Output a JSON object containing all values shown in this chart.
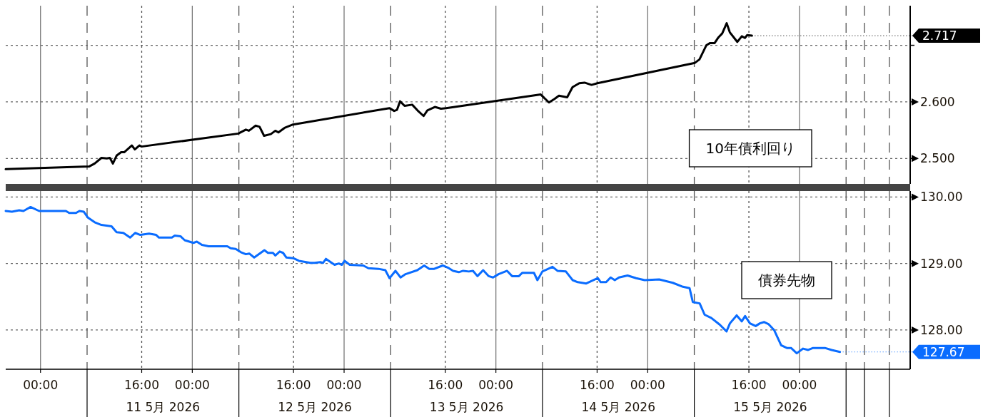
{
  "chart_data": [
    {
      "type": "line",
      "xlim": [
        "2026-05-10T18:30",
        "2026-05-16T17:30"
      ],
      "ylim": [
        2.455,
        2.77
      ],
      "grid": true,
      "legend": "bottom right",
      "tick_labels": "y",
      "xticks": [
        {
          "value": "2026-05-11T00:00",
          "label": null
        },
        {
          "value": "2026-05-11T07:22",
          "label": null
        },
        {
          "value": "2026-05-11T16:00",
          "label": null
        },
        {
          "value": "2026-05-12T00:00",
          "label": null
        },
        {
          "value": "2026-05-12T07:22",
          "label": null
        },
        {
          "value": "2026-05-12T16:00",
          "label": null
        },
        {
          "value": "2026-05-13T00:00",
          "label": null
        },
        {
          "value": "2026-05-13T07:22",
          "label": null
        },
        {
          "value": "2026-05-13T16:00",
          "label": null
        },
        {
          "value": "2026-05-14T00:00",
          "label": null
        },
        {
          "value": "2026-05-14T07:22",
          "label": null
        },
        {
          "value": "2026-05-14T16:00",
          "label": null
        },
        {
          "value": "2026-05-15T00:00",
          "label": null
        },
        {
          "value": "2026-05-15T07:22",
          "label": null
        },
        {
          "value": "2026-05-15T16:00",
          "label": null
        },
        {
          "value": "2026-05-16T00:00",
          "label": null
        },
        {
          "value": "2026-05-16T07:22",
          "label": null
        },
        {
          "value": "2026-05-16T10:15",
          "label": null
        },
        {
          "value": "2026-05-16T14:12",
          "label": null
        }
      ],
      "yticks": [
        {
          "value": 2.5,
          "label": "2.500"
        },
        {
          "value": 2.6,
          "label": "2.600"
        },
        {
          "value": 2.7,
          "label": null
        }
      ],
      "series": [
        {
          "name": "10年債利回り",
          "color": "#000000",
          "value_labels": [
            null,
            null,
            null,
            null,
            null,
            null,
            null,
            null,
            null,
            null,
            null,
            null,
            null,
            null,
            null,
            null,
            null,
            null,
            null,
            null,
            null,
            null,
            null,
            null,
            null,
            null,
            null,
            null,
            null,
            null,
            null,
            null,
            null,
            null,
            null,
            null,
            null,
            null,
            null,
            null,
            null,
            null,
            null,
            null,
            null,
            null,
            null,
            null,
            null,
            null,
            null,
            null,
            null,
            null,
            null,
            null,
            null,
            null,
            null,
            null,
            "2.717"
          ],
          "x": [
            "2026-05-10T18:30",
            "2026-05-11T07:44",
            "2026-05-11T08:34",
            "2026-05-11T09:38",
            "2026-05-11T10:29",
            "2026-05-11T10:58",
            "2026-05-11T11:27",
            "2026-05-11T12:02",
            "2026-05-11T12:45",
            "2026-05-11T13:14",
            "2026-05-11T14:26",
            "2026-05-11T14:55",
            "2026-05-11T15:38",
            "2026-05-11T15:59",
            "2026-05-12T07:16",
            "2026-05-12T08:28",
            "2026-05-12T08:57",
            "2026-05-12T10:01",
            "2026-05-12T10:38",
            "2026-05-12T11:21",
            "2026-05-12T12:25",
            "2026-05-12T13:08",
            "2026-05-12T13:37",
            "2026-05-12T14:35",
            "2026-05-12T15:55",
            "2026-05-13T07:10",
            "2026-05-13T07:55",
            "2026-05-13T08:22",
            "2026-05-13T08:51",
            "2026-05-13T09:34",
            "2026-05-13T10:46",
            "2026-05-13T11:36",
            "2026-05-13T12:34",
            "2026-05-13T13:10",
            "2026-05-13T14:21",
            "2026-05-13T15:19",
            "2026-05-13T16:08",
            "2026-05-14T07:05",
            "2026-05-14T08:23",
            "2026-05-14T09:14",
            "2026-05-14T09:58",
            "2026-05-14T11:16",
            "2026-05-14T12:07",
            "2026-05-14T13:11",
            "2026-05-14T14:01",
            "2026-05-14T15:07",
            "2026-05-14T16:03",
            "2026-05-15T07:28",
            "2026-05-15T08:11",
            "2026-05-15T09:16",
            "2026-05-15T09:52",
            "2026-05-15T10:35",
            "2026-05-15T11:11",
            "2026-05-15T11:47",
            "2026-05-15T12:29",
            "2026-05-15T12:59",
            "2026-05-15T14:10",
            "2026-05-15T14:53",
            "2026-05-15T15:22",
            "2026-05-15T15:44",
            "2026-05-15T16:29"
          ],
          "values": [
            2.481,
            2.486,
            2.491,
            2.501,
            2.5,
            2.501,
            2.491,
            2.505,
            2.511,
            2.511,
            2.523,
            2.516,
            2.523,
            2.521,
            2.544,
            2.551,
            2.549,
            2.558,
            2.556,
            2.54,
            2.543,
            2.549,
            2.546,
            2.554,
            2.56,
            2.589,
            2.584,
            2.586,
            2.601,
            2.593,
            2.595,
            2.585,
            2.575,
            2.585,
            2.591,
            2.588,
            2.589,
            2.613,
            2.599,
            2.605,
            2.611,
            2.608,
            2.626,
            2.633,
            2.634,
            2.63,
            2.633,
            2.669,
            2.675,
            2.7,
            2.704,
            2.704,
            2.714,
            2.721,
            2.739,
            2.723,
            2.706,
            2.716,
            2.713,
            2.718,
            2.717
          ]
        }
      ]
    },
    {
      "type": "line",
      "xlim": [
        "2026-05-10T18:30",
        "2026-05-16T17:30"
      ],
      "ylim": [
        127.41,
        130.09
      ],
      "grid": true,
      "legend": "right",
      "xticks": [
        {
          "value": "2026-05-11T00:00",
          "label": "00:00"
        },
        {
          "value": "2026-05-11T07:22",
          "label": null
        },
        {
          "value": "2026-05-11T16:00",
          "label": "16:00"
        },
        {
          "value": "2026-05-12T00:00",
          "label": "00:00"
        },
        {
          "value": "2026-05-12T07:22",
          "label": null
        },
        {
          "value": "2026-05-12T16:00",
          "label": "16:00"
        },
        {
          "value": "2026-05-13T00:00",
          "label": "00:00"
        },
        {
          "value": "2026-05-13T07:22",
          "label": null
        },
        {
          "value": "2026-05-13T16:00",
          "label": "16:00"
        },
        {
          "value": "2026-05-14T00:00",
          "label": "00:00"
        },
        {
          "value": "2026-05-14T07:22",
          "label": null
        },
        {
          "value": "2026-05-14T16:00",
          "label": "16:00"
        },
        {
          "value": "2026-05-15T00:00",
          "label": "00:00"
        },
        {
          "value": "2026-05-15T07:22",
          "label": null
        },
        {
          "value": "2026-05-15T16:00",
          "label": "16:00"
        },
        {
          "value": "2026-05-16T00:00",
          "label": "00:00"
        },
        {
          "value": "2026-05-16T07:22",
          "label": null
        },
        {
          "value": "2026-05-16T10:15",
          "label": null
        },
        {
          "value": "2026-05-16T14:12",
          "label": null
        }
      ],
      "yticks": [
        {
          "value": 128,
          "label": "128.00"
        },
        {
          "value": 129,
          "label": "129.00"
        },
        {
          "value": 130,
          "label": "130.00"
        }
      ],
      "annotations": [
        "11 5月 2026",
        "12 5月 2026",
        "13 5月 2026",
        "14 5月 2026",
        "15 5月 2026"
      ],
      "series": [
        {
          "name": "債券先物",
          "color": "#0a6cff",
          "value_labels": [
            null,
            null,
            null,
            null,
            null,
            null,
            null,
            null,
            null,
            null,
            null,
            null,
            null,
            null,
            null,
            null,
            null,
            null,
            null,
            null,
            null,
            null,
            null,
            null,
            null,
            null,
            null,
            null,
            null,
            null,
            null,
            null,
            null,
            null,
            null,
            null,
            null,
            null,
            null,
            null,
            null,
            null,
            null,
            null,
            null,
            null,
            null,
            null,
            null,
            null,
            null,
            null,
            null,
            null,
            null,
            null,
            null,
            null,
            null,
            null,
            null,
            null,
            null,
            null,
            null,
            null,
            null,
            null,
            null,
            null,
            null,
            null,
            null,
            null,
            null,
            null,
            null,
            null,
            null,
            null,
            null,
            null,
            null,
            null,
            null,
            null,
            null,
            null,
            null,
            null,
            null,
            null,
            null,
            null,
            null,
            null,
            null,
            null,
            null,
            null,
            null,
            null,
            null,
            null,
            null,
            null,
            null,
            null,
            null,
            null,
            null,
            null,
            null,
            null,
            null,
            null,
            null,
            null,
            null,
            null,
            null,
            null,
            null,
            null,
            null,
            null,
            null,
            null,
            null,
            null,
            null,
            null,
            "127.67"
          ],
          "x": [
            "2026-05-10T18:30",
            "2026-05-10T19:29",
            "2026-05-10T20:38",
            "2026-05-10T21:18",
            "2026-05-10T22:26",
            "2026-05-10T23:47",
            "2026-05-11T04:01",
            "2026-05-11T04:32",
            "2026-05-11T05:37",
            "2026-05-11T06:09",
            "2026-05-11T06:50",
            "2026-05-11T07:30",
            "2026-05-11T08:34",
            "2026-05-11T09:38",
            "2026-05-11T11:14",
            "2026-05-11T12:02",
            "2026-05-11T13:06",
            "2026-05-11T14:10",
            "2026-05-11T14:58",
            "2026-05-11T15:47",
            "2026-05-11T17:10",
            "2026-05-11T18:17",
            "2026-05-11T18:44",
            "2026-05-11T20:46",
            "2026-05-11T21:14",
            "2026-05-11T22:08",
            "2026-05-11T22:48",
            "2026-05-12T00:11",
            "2026-05-12T00:43",
            "2026-05-12T01:31",
            "2026-05-12T02:35",
            "2026-05-12T05:32",
            "2026-05-12T06:04",
            "2026-05-12T06:52",
            "2026-05-12T07:41",
            "2026-05-12T08:28",
            "2026-05-12T09:00",
            "2026-05-12T09:47",
            "2026-05-12T11:24",
            "2026-05-12T11:58",
            "2026-05-12T12:45",
            "2026-05-12T13:08",
            "2026-05-12T13:49",
            "2026-05-12T14:21",
            "2026-05-12T14:53",
            "2026-05-12T15:58",
            "2026-05-12T16:52",
            "2026-05-12T18:40",
            "2026-05-12T19:20",
            "2026-05-12T20:14",
            "2026-05-12T20:41",
            "2026-05-12T21:08",
            "2026-05-12T22:30",
            "2026-05-12T23:10",
            "2026-05-12T23:38",
            "2026-05-13T00:05",
            "2026-05-13T00:54",
            "2026-05-13T03:02",
            "2026-05-13T03:50",
            "2026-05-13T05:26",
            "2026-05-13T06:31",
            "2026-05-13T07:11",
            "2026-05-13T08:07",
            "2026-05-13T08:56",
            "2026-05-13T09:43",
            "2026-05-13T11:35",
            "2026-05-13T12:40",
            "2026-05-13T13:28",
            "2026-05-13T14:15",
            "2026-05-13T15:36",
            "2026-05-13T16:34",
            "2026-05-13T17:14",
            "2026-05-13T18:08",
            "2026-05-13T18:49",
            "2026-05-13T19:43",
            "2026-05-13T20:23",
            "2026-05-13T21:05",
            "2026-05-13T21:59",
            "2026-05-13T22:52",
            "2026-05-13T23:33",
            "2026-05-14T00:25",
            "2026-05-14T01:46",
            "2026-05-14T02:34",
            "2026-05-14T03:38",
            "2026-05-14T04:10",
            "2026-05-14T06:01",
            "2026-05-14T06:34",
            "2026-05-14T07:21",
            "2026-05-14T08:57",
            "2026-05-14T09:44",
            "2026-05-14T11:04",
            "2026-05-14T12:08",
            "2026-05-14T12:56",
            "2026-05-14T14:17",
            "2026-05-14T16:07",
            "2026-05-14T16:34",
            "2026-05-14T17:26",
            "2026-05-14T18:08",
            "2026-05-14T18:48",
            "2026-05-14T19:28",
            "2026-05-14T20:49",
            "2026-05-14T22:10",
            "2026-05-14T23:31",
            "2026-05-15T01:49",
            "2026-05-15T03:58",
            "2026-05-15T05:34",
            "2026-05-15T06:37",
            "2026-05-15T07:08",
            "2026-05-15T08:13",
            "2026-05-15T09:00",
            "2026-05-15T10:04",
            "2026-05-15T11:24",
            "2026-05-15T12:28",
            "2026-05-15T13:00",
            "2026-05-15T14:04",
            "2026-05-15T14:52",
            "2026-05-15T15:24",
            "2026-05-15T16:10",
            "2026-05-15T17:04",
            "2026-05-15T17:44",
            "2026-05-15T18:25",
            "2026-05-15T19:05",
            "2026-05-15T19:59",
            "2026-05-15T21:06",
            "2026-05-15T22:00",
            "2026-05-15T22:40",
            "2026-05-15T23:34",
            "2026-05-16T00:34",
            "2026-05-16T01:22",
            "2026-05-16T02:09",
            "2026-05-16T04:01",
            "2026-05-16T05:05",
            "2026-05-16T06:24"
          ],
          "values": [
            129.79,
            129.78,
            129.8,
            129.79,
            129.85,
            129.79,
            129.79,
            129.76,
            129.76,
            129.79,
            129.78,
            129.69,
            129.62,
            129.58,
            129.56,
            129.47,
            129.46,
            129.39,
            129.46,
            129.43,
            129.45,
            129.43,
            129.39,
            129.39,
            129.42,
            129.41,
            129.35,
            129.31,
            129.33,
            129.28,
            129.26,
            129.26,
            129.23,
            129.22,
            129.17,
            129.14,
            129.15,
            129.09,
            129.2,
            129.16,
            129.16,
            129.12,
            129.18,
            129.16,
            129.09,
            129.08,
            129.04,
            129.01,
            129.01,
            129.02,
            129.01,
            129.07,
            128.98,
            129.0,
            128.98,
            129.04,
            128.98,
            128.97,
            128.93,
            128.92,
            128.9,
            128.78,
            128.89,
            128.79,
            128.84,
            128.9,
            128.97,
            128.92,
            128.92,
            128.97,
            128.93,
            128.89,
            128.87,
            128.89,
            128.88,
            128.89,
            128.81,
            128.9,
            128.81,
            128.79,
            128.84,
            128.89,
            128.81,
            128.81,
            128.86,
            128.86,
            128.75,
            128.88,
            128.95,
            128.89,
            128.88,
            128.75,
            128.72,
            128.7,
            128.78,
            128.72,
            128.72,
            128.79,
            128.75,
            128.79,
            128.82,
            128.78,
            128.75,
            128.76,
            128.71,
            128.65,
            128.63,
            128.42,
            128.4,
            128.23,
            128.18,
            128.08,
            127.98,
            128.1,
            128.22,
            128.13,
            128.21,
            128.1,
            128.06,
            128.1,
            128.12,
            128.09,
            128.0,
            127.77,
            127.73,
            127.73,
            127.65,
            127.72,
            127.7,
            127.73,
            127.73,
            127.7,
            127.67
          ]
        }
      ]
    }
  ]
}
